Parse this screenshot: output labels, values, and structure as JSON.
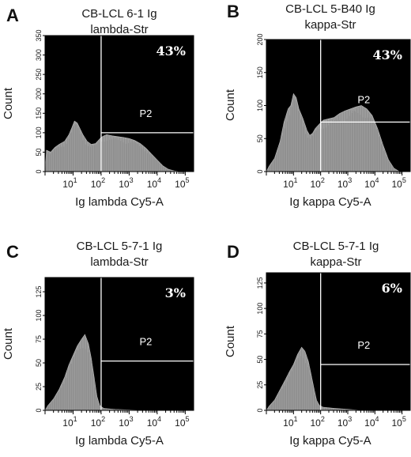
{
  "colors": {
    "plot_background": "#000000",
    "histogram_fill": "#9c9c9c",
    "gate_line": "#ffffff",
    "text": "#1a1a1a"
  },
  "chart_data": [
    {
      "type": "histogram",
      "panel": "A",
      "title_line1": "CB-LCL 6-1 Ig",
      "title_line2": "lambda-Str",
      "xlabel": "Ig lambda Cy5-A",
      "ylabel": "Count",
      "x_scale": "log",
      "xlim_log10": [
        0,
        5.3
      ],
      "x_ticks": [
        {
          "base": "10",
          "exp": "1",
          "log10": 1
        },
        {
          "base": "10",
          "exp": "2",
          "log10": 2
        },
        {
          "base": "10",
          "exp": "3",
          "log10": 3
        },
        {
          "base": "10",
          "exp": "4",
          "log10": 4
        },
        {
          "base": "10",
          "exp": "5",
          "log10": 5
        }
      ],
      "ylim": [
        0,
        350
      ],
      "y_ticks": [
        "0",
        "50",
        "100",
        "150",
        "200",
        "250",
        "300",
        "350"
      ],
      "y_tick_values": [
        0,
        50,
        100,
        150,
        200,
        250,
        300,
        350
      ],
      "gate": {
        "name": "P2",
        "x_log10": 2.0,
        "y": 100,
        "percent": "43%"
      },
      "profile": [
        [
          0.0,
          0
        ],
        [
          0.05,
          55
        ],
        [
          0.2,
          50
        ],
        [
          0.35,
          62
        ],
        [
          0.5,
          70
        ],
        [
          0.7,
          78
        ],
        [
          0.85,
          95
        ],
        [
          0.95,
          112
        ],
        [
          1.05,
          130
        ],
        [
          1.15,
          125
        ],
        [
          1.25,
          110
        ],
        [
          1.35,
          95
        ],
        [
          1.5,
          78
        ],
        [
          1.65,
          70
        ],
        [
          1.8,
          72
        ],
        [
          1.9,
          80
        ],
        [
          2.0,
          88
        ],
        [
          2.1,
          92
        ],
        [
          2.2,
          95
        ],
        [
          2.4,
          92
        ],
        [
          2.6,
          90
        ],
        [
          2.8,
          88
        ],
        [
          3.0,
          85
        ],
        [
          3.2,
          80
        ],
        [
          3.4,
          72
        ],
        [
          3.6,
          60
        ],
        [
          3.8,
          45
        ],
        [
          4.0,
          30
        ],
        [
          4.2,
          15
        ],
        [
          4.4,
          6
        ],
        [
          4.6,
          2
        ],
        [
          4.8,
          0
        ]
      ]
    },
    {
      "type": "histogram",
      "panel": "B",
      "title_line1": "CB-LCL 5-B40 Ig",
      "title_line2": "kappa-Str",
      "xlabel": "Ig kappa Cy5-A",
      "ylabel": "Count",
      "x_scale": "log",
      "xlim_log10": [
        0,
        5.3
      ],
      "x_ticks": [
        {
          "base": "10",
          "exp": "1",
          "log10": 1
        },
        {
          "base": "10",
          "exp": "2",
          "log10": 2
        },
        {
          "base": "10",
          "exp": "3",
          "log10": 3
        },
        {
          "base": "10",
          "exp": "4",
          "log10": 4
        },
        {
          "base": "10",
          "exp": "5",
          "log10": 5
        }
      ],
      "ylim": [
        0,
        200
      ],
      "y_ticks": [
        "0",
        "50",
        "100",
        "150",
        "200"
      ],
      "y_tick_values": [
        0,
        50,
        100,
        150,
        200
      ],
      "gate": {
        "name": "P2",
        "x_log10": 2.0,
        "y": 75,
        "percent": "43%"
      },
      "profile": [
        [
          0.0,
          0
        ],
        [
          0.1,
          8
        ],
        [
          0.3,
          20
        ],
        [
          0.5,
          45
        ],
        [
          0.65,
          75
        ],
        [
          0.8,
          95
        ],
        [
          0.9,
          100
        ],
        [
          1.0,
          118
        ],
        [
          1.1,
          112
        ],
        [
          1.2,
          95
        ],
        [
          1.35,
          80
        ],
        [
          1.5,
          62
        ],
        [
          1.6,
          55
        ],
        [
          1.7,
          58
        ],
        [
          1.8,
          65
        ],
        [
          1.95,
          72
        ],
        [
          2.1,
          78
        ],
        [
          2.3,
          80
        ],
        [
          2.5,
          82
        ],
        [
          2.7,
          88
        ],
        [
          2.9,
          92
        ],
        [
          3.1,
          95
        ],
        [
          3.3,
          98
        ],
        [
          3.5,
          100
        ],
        [
          3.7,
          95
        ],
        [
          3.9,
          85
        ],
        [
          4.1,
          65
        ],
        [
          4.3,
          40
        ],
        [
          4.5,
          18
        ],
        [
          4.7,
          5
        ],
        [
          4.9,
          0
        ]
      ]
    },
    {
      "type": "histogram",
      "panel": "C",
      "title_line1": "CB-LCL 5-7-1 Ig",
      "title_line2": "lambda-Str",
      "xlabel": "Ig lambda Cy5-A",
      "ylabel": "Count",
      "x_scale": "log",
      "xlim_log10": [
        0,
        5.3
      ],
      "x_ticks": [
        {
          "base": "10",
          "exp": "1",
          "log10": 1
        },
        {
          "base": "10",
          "exp": "2",
          "log10": 2
        },
        {
          "base": "10",
          "exp": "3",
          "log10": 3
        },
        {
          "base": "10",
          "exp": "4",
          "log10": 4
        },
        {
          "base": "10",
          "exp": "5",
          "log10": 5
        }
      ],
      "ylim": [
        0,
        140
      ],
      "y_ticks": [
        "0",
        "25",
        "50",
        "75",
        "100",
        "125"
      ],
      "y_tick_values": [
        0,
        25,
        50,
        75,
        100,
        125
      ],
      "gate": {
        "name": "P2",
        "x_log10": 2.0,
        "y": 52,
        "percent": "3%"
      },
      "profile": [
        [
          0.0,
          0
        ],
        [
          0.1,
          5
        ],
        [
          0.3,
          12
        ],
        [
          0.5,
          22
        ],
        [
          0.7,
          35
        ],
        [
          0.85,
          48
        ],
        [
          1.0,
          58
        ],
        [
          1.15,
          68
        ],
        [
          1.3,
          75
        ],
        [
          1.42,
          80
        ],
        [
          1.55,
          70
        ],
        [
          1.65,
          55
        ],
        [
          1.75,
          35
        ],
        [
          1.85,
          15
        ],
        [
          1.95,
          5
        ],
        [
          2.1,
          2
        ],
        [
          2.5,
          1
        ],
        [
          3.0,
          0.5
        ],
        [
          3.5,
          0
        ]
      ]
    },
    {
      "type": "histogram",
      "panel": "D",
      "title_line1": "CB-LCL 5-7-1 Ig",
      "title_line2": "kappa-Str",
      "xlabel": "Ig kappa Cy5-A",
      "ylabel": "Count",
      "x_scale": "log",
      "xlim_log10": [
        0,
        5.3
      ],
      "x_ticks": [
        {
          "base": "10",
          "exp": "1",
          "log10": 1
        },
        {
          "base": "10",
          "exp": "2",
          "log10": 2
        },
        {
          "base": "10",
          "exp": "3",
          "log10": 3
        },
        {
          "base": "10",
          "exp": "4",
          "log10": 4
        },
        {
          "base": "10",
          "exp": "5",
          "log10": 5
        }
      ],
      "ylim": [
        0,
        135
      ],
      "y_ticks": [
        "0",
        "25",
        "50",
        "75",
        "100",
        "125"
      ],
      "y_tick_values": [
        0,
        25,
        50,
        75,
        100,
        125
      ],
      "gate": {
        "name": "P2",
        "x_log10": 2.0,
        "y": 45,
        "percent": "6%"
      },
      "profile": [
        [
          0.0,
          0
        ],
        [
          0.1,
          4
        ],
        [
          0.3,
          10
        ],
        [
          0.5,
          20
        ],
        [
          0.7,
          30
        ],
        [
          0.85,
          38
        ],
        [
          1.0,
          45
        ],
        [
          1.15,
          55
        ],
        [
          1.3,
          62
        ],
        [
          1.42,
          58
        ],
        [
          1.55,
          48
        ],
        [
          1.65,
          35
        ],
        [
          1.75,
          22
        ],
        [
          1.85,
          10
        ],
        [
          1.95,
          5
        ],
        [
          2.1,
          3
        ],
        [
          2.5,
          2
        ],
        [
          3.0,
          1
        ],
        [
          3.5,
          0
        ]
      ]
    }
  ]
}
